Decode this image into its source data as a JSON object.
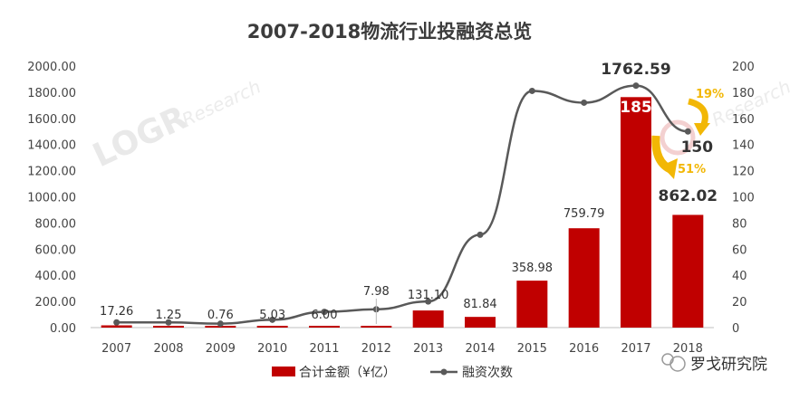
{
  "chart_data": {
    "type": "bar",
    "title": "2007-2018物流行业投融资总览",
    "categories": [
      "2007",
      "2008",
      "2009",
      "2010",
      "2011",
      "2012",
      "2013",
      "2014",
      "2015",
      "2016",
      "2017",
      "2018"
    ],
    "series": [
      {
        "name": "合计金额（¥亿）",
        "type": "bar",
        "axis": "left",
        "color": "#c00000",
        "values": [
          17.26,
          1.25,
          0.76,
          5.03,
          6.0,
          7.98,
          131.1,
          81.84,
          358.98,
          759.79,
          1762.59,
          862.02
        ],
        "labels": [
          "17.26",
          "1.25",
          "0.76",
          "5.03",
          "6.00",
          "7.98",
          "131.10",
          "81.84",
          "358.98",
          "759.79",
          "1762.59",
          "862.02"
        ]
      },
      {
        "name": "融资次数",
        "type": "line",
        "axis": "right",
        "color": "#595959",
        "values": [
          4,
          4,
          3,
          6,
          12,
          14,
          20,
          71,
          181,
          172,
          185,
          150
        ],
        "labels": {
          "10": "185",
          "11": "150"
        }
      }
    ],
    "y_left": {
      "min": 0,
      "max": 2000,
      "step": 200,
      "ticks": [
        "0.00",
        "200.00",
        "400.00",
        "600.00",
        "800.00",
        "1000.00",
        "1200.00",
        "1400.00",
        "1600.00",
        "1800.00",
        "2000.00"
      ]
    },
    "y_right": {
      "min": 0,
      "max": 200,
      "step": 20,
      "ticks": [
        "0",
        "20",
        "40",
        "60",
        "80",
        "100",
        "120",
        "140",
        "160",
        "180",
        "200"
      ]
    },
    "annotations": [
      {
        "text": "19%",
        "color": "#f2b705",
        "near": "2018 融资次数",
        "arrow": "down"
      },
      {
        "text": "51%",
        "color": "#f2b705",
        "near": "2018 合计金额",
        "arrow": "down"
      }
    ],
    "legend": {
      "position": "bottom",
      "items": [
        "合计金额（¥亿）",
        "融资次数"
      ]
    },
    "grid": false
  },
  "watermark": {
    "logo": "LOGR",
    "sub": "Research"
  },
  "brand_label": "罗戈研究院"
}
